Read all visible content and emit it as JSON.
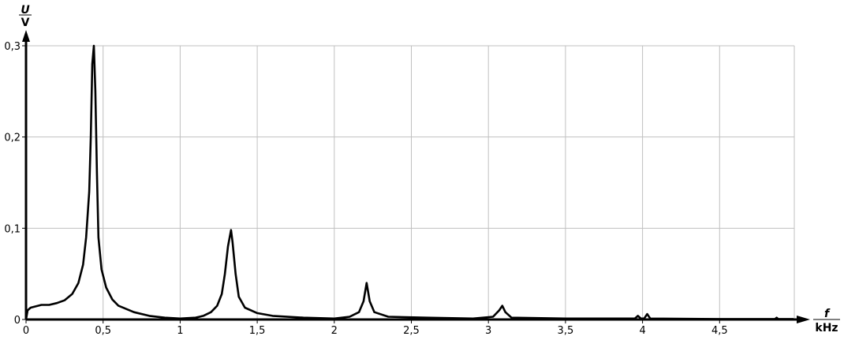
{
  "chart_data": {
    "type": "line",
    "title": "",
    "xlabel": {
      "symbol": "f",
      "unit": "kHz"
    },
    "ylabel": {
      "symbol": "U",
      "unit": "V"
    },
    "xlim": [
      0,
      4.98
    ],
    "ylim": [
      0,
      0.3
    ],
    "grid": true,
    "line_color": "#000000",
    "grid_color": "#c0c0c0",
    "x_ticks": [
      0,
      0.5,
      1,
      1.5,
      2,
      2.5,
      3,
      3.5,
      4,
      4.5
    ],
    "x_tick_labels": [
      "0",
      "0,5",
      "1",
      "1,5",
      "2",
      "2,5",
      "3",
      "3,5",
      "4",
      "4,5"
    ],
    "y_ticks": [
      0,
      0.1,
      0.2,
      0.3
    ],
    "y_tick_labels": [
      "0",
      "0,1",
      "0,2",
      "0,3"
    ],
    "series": [
      {
        "x": [
          0,
          0.01,
          0.03,
          0.1,
          0.15,
          0.2,
          0.25,
          0.3,
          0.34,
          0.37,
          0.39,
          0.41,
          0.42,
          0.43,
          0.44,
          0.45,
          0.46,
          0.47,
          0.49,
          0.52,
          0.56,
          0.6,
          0.7,
          0.8,
          0.9,
          1.0,
          1.1,
          1.15,
          1.2,
          1.24,
          1.27,
          1.29,
          1.31,
          1.33,
          1.34,
          1.36,
          1.38,
          1.42,
          1.5,
          1.6,
          1.8,
          2.0,
          2.1,
          2.16,
          2.19,
          2.21,
          2.23,
          2.26,
          2.35,
          2.6,
          2.9,
          3.03,
          3.07,
          3.09,
          3.11,
          3.15,
          3.5,
          3.95,
          3.97,
          3.99,
          4.01,
          4.03,
          4.05,
          4.5,
          4.86,
          4.87,
          4.88,
          4.98
        ],
        "y": [
          0,
          0.01,
          0.013,
          0.016,
          0.016,
          0.018,
          0.021,
          0.028,
          0.04,
          0.06,
          0.09,
          0.14,
          0.2,
          0.28,
          0.3,
          0.25,
          0.16,
          0.09,
          0.055,
          0.035,
          0.022,
          0.015,
          0.008,
          0.004,
          0.002,
          0.001,
          0.002,
          0.004,
          0.008,
          0.015,
          0.028,
          0.05,
          0.08,
          0.098,
          0.085,
          0.05,
          0.025,
          0.013,
          0.007,
          0.004,
          0.002,
          0.001,
          0.003,
          0.008,
          0.02,
          0.04,
          0.02,
          0.008,
          0.003,
          0.002,
          0.001,
          0.003,
          0.01,
          0.015,
          0.008,
          0.002,
          0.001,
          0.001,
          0.004,
          0.001,
          0.001,
          0.006,
          0.001,
          0.0005,
          0.0005,
          0.002,
          0.0005,
          0.0005
        ]
      }
    ]
  }
}
